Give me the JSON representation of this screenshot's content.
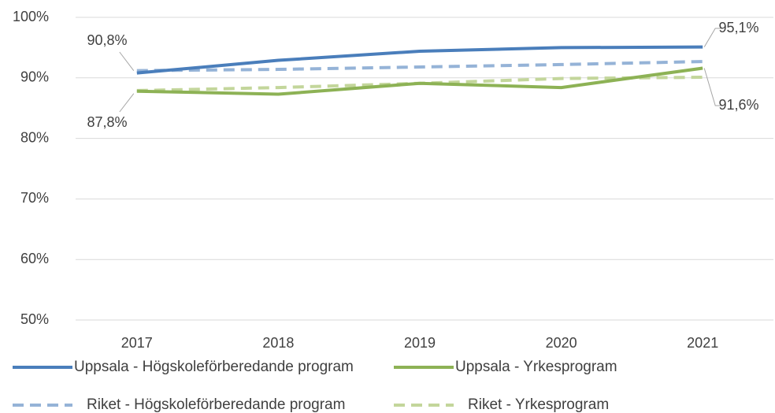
{
  "chart_data": {
    "type": "line",
    "categories": [
      "2017",
      "2018",
      "2019",
      "2020",
      "2021"
    ],
    "series": [
      {
        "name": "Uppsala  - Högskoleförberedande program",
        "color": "#4a7ebb",
        "style": "solid",
        "values": [
          90.8,
          92.9,
          94.4,
          95.0,
          95.1
        ],
        "value_labels": [
          "90,8%",
          null,
          null,
          null,
          "95,1%"
        ]
      },
      {
        "name": "Uppsala  - Yrkesprogram",
        "color": "#8db255",
        "style": "solid",
        "values": [
          87.8,
          87.3,
          89.1,
          88.4,
          91.6
        ],
        "value_labels": [
          "87,8%",
          null,
          null,
          null,
          "91,6%"
        ]
      },
      {
        "name": "Riket - Högskoleförberedande program",
        "color": "#95b3d7",
        "style": "dashed",
        "values": [
          91.2,
          91.4,
          91.8,
          92.2,
          92.7
        ]
      },
      {
        "name": "Riket - Yrkesprogram",
        "color": "#c3d69b",
        "style": "dashed",
        "values": [
          87.9,
          88.4,
          89.1,
          89.9,
          90.1
        ]
      }
    ],
    "ylim": [
      50,
      100
    ],
    "yticks": [
      {
        "value": 50,
        "label": "50%"
      },
      {
        "value": 60,
        "label": "60%"
      },
      {
        "value": 70,
        "label": "70%"
      },
      {
        "value": 80,
        "label": "80%"
      },
      {
        "value": 90,
        "label": "90%"
      },
      {
        "value": 100,
        "label": "100%"
      }
    ],
    "grid": true
  }
}
